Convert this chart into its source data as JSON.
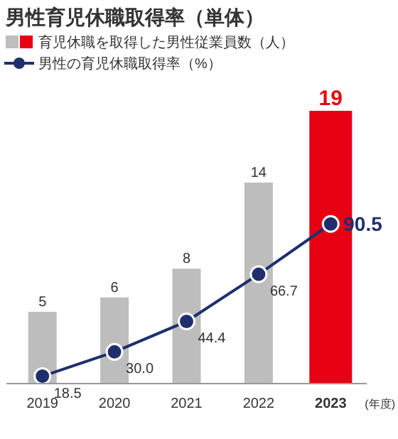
{
  "chart_data": {
    "type": "bar",
    "title": "男性育児休職取得率（単体）",
    "categories": [
      "2019",
      "2020",
      "2021",
      "2022",
      "2023"
    ],
    "series": [
      {
        "name": "育児休職を取得した男性従業員数（人）",
        "colors": [
          "#bdbdbd",
          "#bdbdbd",
          "#bdbdbd",
          "#bdbdbd",
          "#e60012"
        ],
        "values": [
          5,
          6,
          8,
          14,
          19
        ],
        "value_labels": [
          "5",
          "6",
          "8",
          "14",
          "19"
        ]
      },
      {
        "name": "男性の育児休職取得率（%）",
        "type": "line",
        "axis": "y2",
        "color": "#1f2f6e",
        "marker": "circle",
        "values": [
          18.5,
          30.0,
          44.4,
          66.7,
          90.5
        ],
        "value_labels": [
          "18.5",
          "30.0",
          "44.4",
          "66.7",
          "90.5"
        ]
      }
    ],
    "ylim": [
      0,
      19
    ],
    "y2lim": [
      15,
      144
    ],
    "legend": "top left",
    "annotations": [
      "(年度)"
    ]
  }
}
